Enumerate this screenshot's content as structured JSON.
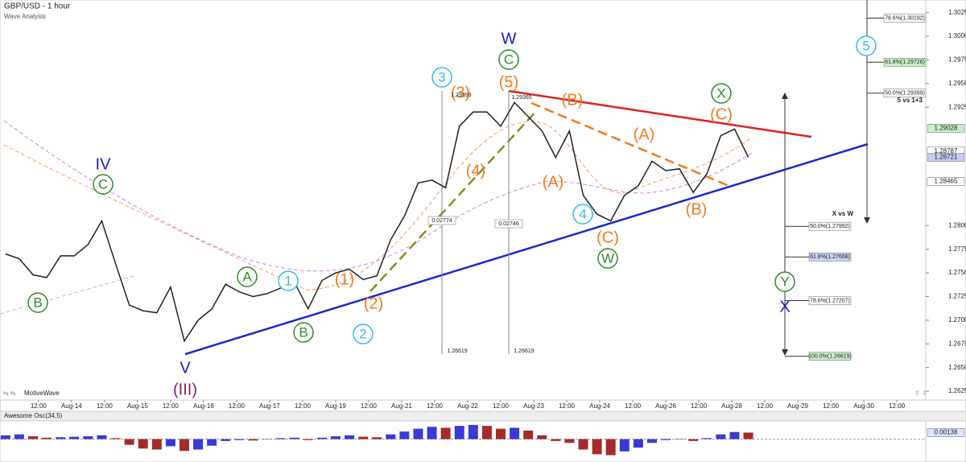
{
  "chart_data": {
    "type": "line",
    "title": "GBP/USD - 1 hour",
    "subtitle": "Wave Analysis",
    "watermark": "MotiveWave",
    "x": [
      -12,
      -7,
      -2,
      3,
      8,
      13,
      18,
      23,
      28,
      33,
      38,
      43,
      48,
      53,
      58,
      63,
      68,
      73,
      78,
      83,
      88,
      93,
      98,
      103,
      108,
      113,
      118,
      123,
      128,
      133,
      138,
      143,
      148,
      153,
      158,
      163,
      168,
      173,
      178,
      183,
      188,
      193,
      198,
      203,
      208,
      213,
      218,
      223,
      228,
      233,
      238,
      243,
      248,
      253,
      258
    ],
    "xlim": [
      -14,
      322.5
    ],
    "xticks": [
      {
        "value": 0,
        "label": "12:00"
      },
      {
        "value": 12,
        "label": "Aug-14"
      },
      {
        "value": 24,
        "label": "12:00"
      },
      {
        "value": 36,
        "label": "Aug-15"
      },
      {
        "value": 48,
        "label": "12:00"
      },
      {
        "value": 60,
        "label": "Aug-16"
      },
      {
        "value": 72,
        "label": "12:00"
      },
      {
        "value": 84,
        "label": "Aug-17"
      },
      {
        "value": 96,
        "label": "12:00"
      },
      {
        "value": 108,
        "label": "Aug-19"
      },
      {
        "value": 120,
        "label": "12:00"
      },
      {
        "value": 132,
        "label": "Aug-21"
      },
      {
        "value": 144,
        "label": "12:00"
      },
      {
        "value": 156,
        "label": "Aug-22"
      },
      {
        "value": 168,
        "label": "12:00"
      },
      {
        "value": 180,
        "label": "Aug-23"
      },
      {
        "value": 192,
        "label": "12:00"
      },
      {
        "value": 204,
        "label": "Aug-24"
      },
      {
        "value": 216,
        "label": "12:00"
      },
      {
        "value": 228,
        "label": "Aug-26"
      },
      {
        "value": 240,
        "label": "12:00"
      },
      {
        "value": 252,
        "label": "Aug-28"
      },
      {
        "value": 264,
        "label": "12:00"
      },
      {
        "value": 276,
        "label": "Aug-29"
      },
      {
        "value": 288,
        "label": "12:00"
      },
      {
        "value": 300,
        "label": "Aug-30"
      },
      {
        "value": 312,
        "label": "12:00"
      }
    ],
    "series": [
      {
        "color": "#222222",
        "values": [
          1.277,
          1.2765,
          1.2748,
          1.2745,
          1.2768,
          1.2768,
          1.278,
          1.2805,
          1.276,
          1.2716,
          1.271,
          1.2708,
          1.2735,
          1.2678,
          1.27,
          1.2712,
          1.2738,
          1.273,
          1.2725,
          1.2728,
          1.2734,
          1.274,
          1.2712,
          1.2742,
          1.275,
          1.2754,
          1.2743,
          1.2747,
          1.2785,
          1.281,
          1.2845,
          1.2848,
          1.284,
          1.2905,
          1.292,
          1.292,
          1.2905,
          1.293,
          1.2915,
          1.29,
          1.2872,
          1.29,
          1.2832,
          1.2812,
          1.2805,
          1.2832,
          1.2842,
          1.2868,
          1.2858,
          1.286,
          1.2835,
          1.2855,
          1.2895,
          1.2902,
          1.28721
        ]
      }
    ],
    "ylim": [
      1.26157,
      1.30383
    ],
    "yticks": [
      {
        "value": 1.3025,
        "label": "1.30250"
      },
      {
        "value": 1.3,
        "label": "1.30000"
      },
      {
        "value": 1.2975,
        "label": "1.29750"
      },
      {
        "value": 1.295,
        "label": "1.29500"
      },
      {
        "value": 1.2925,
        "label": "1.29250"
      },
      {
        "value": 1.28,
        "label": "1.28000"
      },
      {
        "value": 1.2775,
        "label": "1.27750"
      },
      {
        "value": 1.275,
        "label": "1.27500"
      },
      {
        "value": 1.2725,
        "label": "1.27250"
      },
      {
        "value": 1.27,
        "label": "1.27000"
      },
      {
        "value": 1.2675,
        "label": "1.26750"
      },
      {
        "value": 1.265,
        "label": "1.26500"
      },
      {
        "value": 1.2625,
        "label": "1.26250"
      }
    ],
    "price_markers": [
      {
        "value": 1.29028,
        "color": "#c9efc9"
      },
      {
        "value": 1.28787,
        "color": "#ffffff"
      },
      {
        "value": 1.28721,
        "color": "#c9c9f2"
      },
      {
        "value": 1.28465,
        "color": "#ffffff"
      }
    ],
    "annotations": [
      {
        "text": "IV",
        "color": "#1a1acc",
        "circled": false
      },
      {
        "text": "C",
        "color": "#2e8b2e",
        "circled": true
      },
      {
        "text": "B",
        "color": "#2e8b2e",
        "circled": true
      },
      {
        "text": "V",
        "color": "#1a1acc",
        "circled": false
      },
      {
        "text": "(III)",
        "color": "#7a1f6e",
        "circled": false
      },
      {
        "text": "A",
        "color": "#2e8b2e",
        "circled": true
      },
      {
        "text": "B",
        "color": "#2e8b2e",
        "circled": true
      },
      {
        "text": "1",
        "color": "#33bbee",
        "circled": true
      },
      {
        "text": "2",
        "color": "#33bbee",
        "circled": true
      },
      {
        "text": "(1)",
        "color": "#f07a1e",
        "circled": false
      },
      {
        "text": "(2)",
        "color": "#f07a1e",
        "circled": false
      },
      {
        "text": "3",
        "color": "#33bbee",
        "circled": true
      },
      {
        "text": "(3)",
        "color": "#f07a1e",
        "circled": false
      },
      {
        "text": "(4)",
        "color": "#f07a1e",
        "circled": false
      },
      {
        "text": "W",
        "color": "#1a1acc",
        "circled": false
      },
      {
        "text": "C",
        "color": "#2e8b2e",
        "circled": true
      },
      {
        "text": "(5)",
        "color": "#f07a1e",
        "circled": false
      },
      {
        "text": "(B)",
        "color": "#f07a1e",
        "circled": false
      },
      {
        "text": "(A)",
        "color": "#f07a1e",
        "circled": false
      },
      {
        "text": "4",
        "color": "#33bbee",
        "circled": true
      },
      {
        "text": "(C)",
        "color": "#f07a1e",
        "circled": false
      },
      {
        "text": "W",
        "color": "#2e8b2e",
        "circled": true
      },
      {
        "text": "(A)",
        "color": "#f07a1e",
        "circled": false
      },
      {
        "text": "(B)",
        "color": "#f07a1e",
        "circled": false
      },
      {
        "text": "X",
        "color": "#2e8b2e",
        "circled": true
      },
      {
        "text": "(C)",
        "color": "#f07a1e",
        "circled": false
      },
      {
        "text": "5",
        "color": "#33bbee",
        "circled": true
      },
      {
        "text": "Y",
        "color": "#2e8b2e",
        "circled": true
      },
      {
        "text": "X",
        "color": "#1a1acc",
        "circled": false
      }
    ],
    "measure_labels": [
      "1.29393",
      "1.29365",
      "0.02774",
      "0.02746",
      "1.26619",
      "1.26619"
    ],
    "fib_notes": [
      "5 vs 1+3",
      "X vs W"
    ],
    "fib_levels": [
      {
        "label": "78.6%(1.30192)",
        "value": 1.30192,
        "box_color": "#ffffff"
      },
      {
        "label": "61.8%(1.29726)",
        "value": 1.29726,
        "box_color": "#c9efc9"
      },
      {
        "label": "50.0%(1.29399)",
        "value": 1.29399,
        "box_color": "#ffffff"
      },
      {
        "label": "50.0%(1.27992)",
        "value": 1.27992,
        "box_color": "#ffffff"
      },
      {
        "label": "61.8%(1.27668)",
        "value": 1.27668,
        "box_color": "#c9d3f2"
      },
      {
        "label": "78.6%(1.27207)",
        "value": 1.27207,
        "box_color": "#ffffff"
      },
      {
        "label": "100.0%(1.26619)",
        "value": 1.26619,
        "box_color": "#c9efc9"
      }
    ],
    "oscillator": {
      "title": "Awesome Osc(34,5)",
      "up_color": "#3a3ad8",
      "down_color": "#a62a2a",
      "ylim": [
        -0.0045,
        0.0035
      ],
      "values": [
        0.0008,
        0.001,
        0.0006,
        0.0003,
        0.0004,
        0.0005,
        0.0006,
        0.0008,
        0.0002,
        -0.0012,
        -0.002,
        -0.0022,
        -0.0015,
        -0.0025,
        -0.0022,
        -0.0014,
        -0.0004,
        -0.0002,
        -0.0003,
        0.0,
        0.0002,
        0.0003,
        -0.0002,
        0.0003,
        0.0006,
        0.0008,
        0.0005,
        0.0004,
        0.001,
        0.0016,
        0.0022,
        0.0026,
        0.0024,
        0.0028,
        0.003,
        0.0028,
        0.0022,
        0.0024,
        0.0018,
        0.0008,
        -0.0004,
        -0.0008,
        -0.0022,
        -0.0032,
        -0.0034,
        -0.0026,
        -0.0018,
        -0.0008,
        -0.0002,
        0.0,
        -0.0004,
        0.0002,
        0.001,
        0.0015,
        0.00138
      ]
    }
  }
}
